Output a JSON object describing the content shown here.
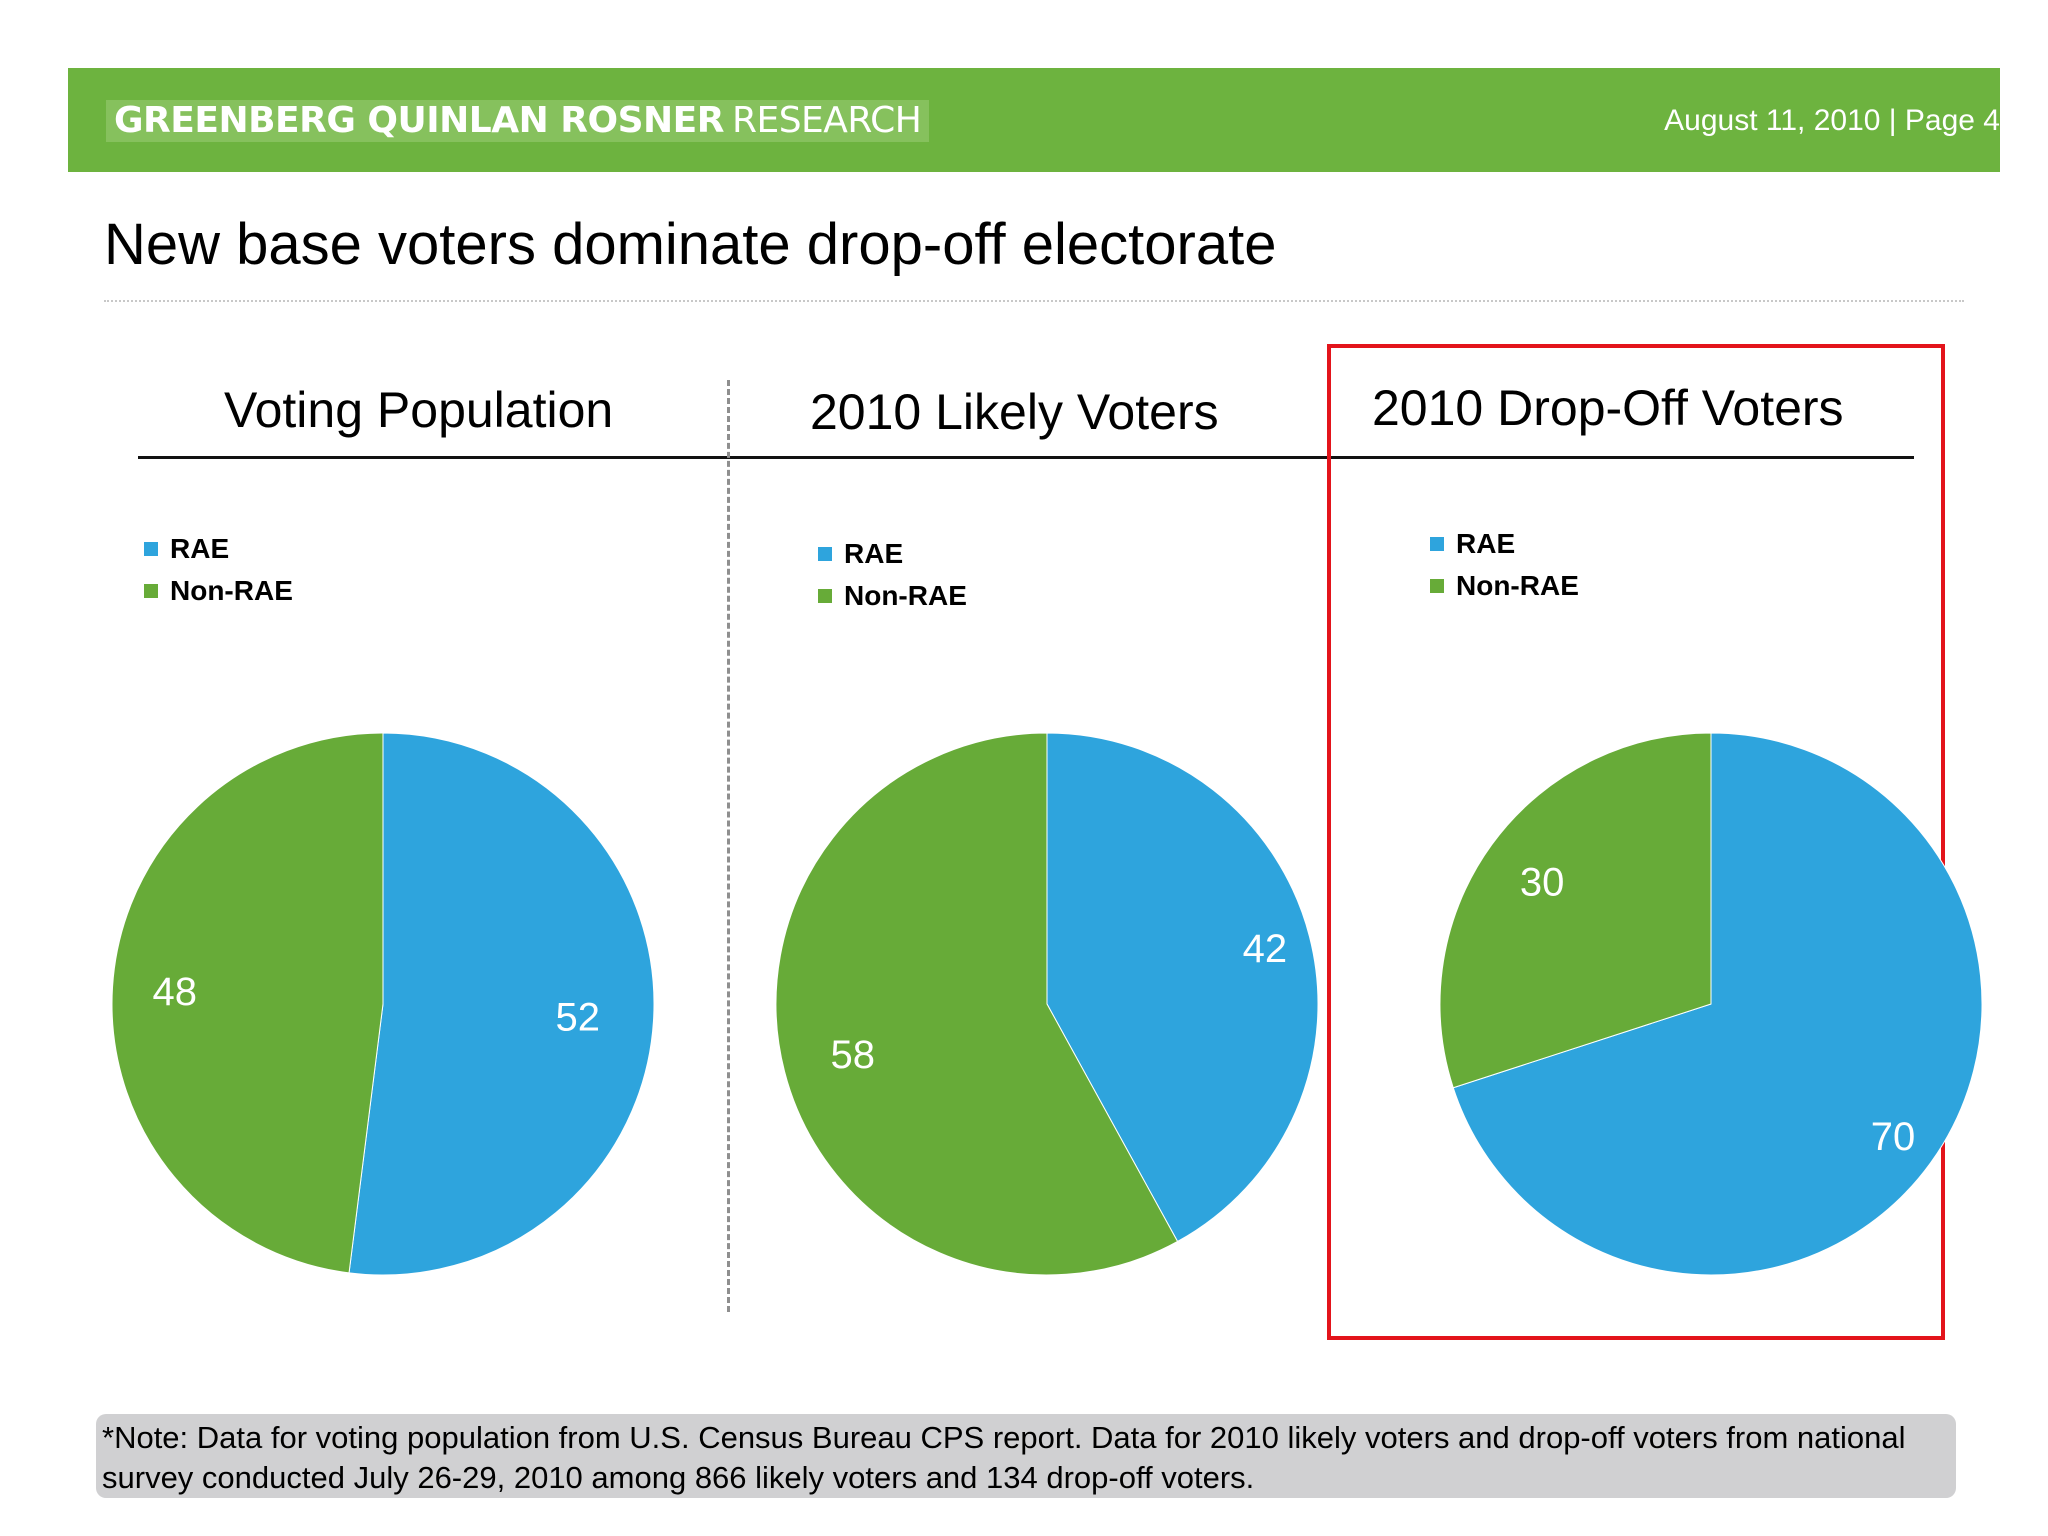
{
  "header": {
    "brand_bold": "GREENBERG QUINLAN ROSNER",
    "brand_light": "RESEARCH",
    "date_page": "August 11, 2010  |  Page 4"
  },
  "title": "New base voters dominate drop-off electorate",
  "note": "*Note: Data for voting population from U.S. Census Bureau CPS report. Data for 2010 likely voters and drop-off voters from national survey conducted July 26-29, 2010 among 866 likely voters and 134 drop-off voters.",
  "colors": {
    "rae": "#2ea4dd",
    "non_rae": "#67ab38",
    "banner": "#6db33f",
    "highlight": "#e3141b"
  },
  "chart_data": [
    {
      "type": "pie",
      "title": "Voting Population",
      "legend": [
        "RAE",
        "Non-RAE"
      ],
      "legend_placement": "top-left",
      "slices": [
        {
          "label": "RAE",
          "value": 52
        },
        {
          "label": "Non-RAE",
          "value": 48
        }
      ]
    },
    {
      "type": "pie",
      "title": "2010 Likely Voters",
      "legend": [
        "RAE",
        "Non-RAE"
      ],
      "legend_placement": "top-left",
      "slices": [
        {
          "label": "RAE",
          "value": 42
        },
        {
          "label": "Non-RAE",
          "value": 58
        }
      ]
    },
    {
      "type": "pie",
      "title": "2010 Drop-Off Voters",
      "legend": [
        "RAE",
        "Non-RAE"
      ],
      "legend_placement": "top-left",
      "highlighted": true,
      "slices": [
        {
          "label": "RAE",
          "value": 70
        },
        {
          "label": "Non-RAE",
          "value": 30
        }
      ]
    }
  ]
}
